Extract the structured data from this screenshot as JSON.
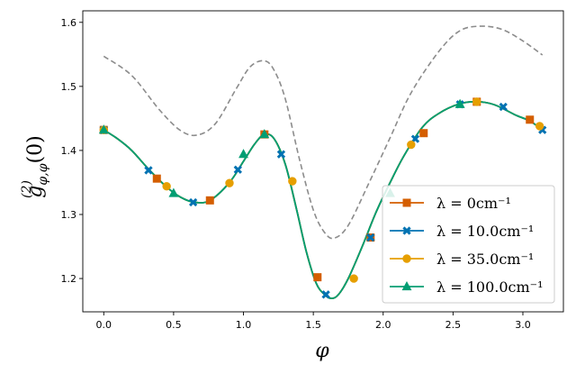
{
  "chart_data": {
    "type": "line",
    "xlabel": "φ",
    "ylabel": "g",
    "ylabel_sup": "(2)",
    "ylabel_sub": "φ,φ",
    "ylabel_arg": "(0)",
    "xlim": [
      -0.15,
      3.29
    ],
    "ylim": [
      1.148,
      1.618
    ],
    "x_ticks": [
      0.0,
      0.5,
      1.0,
      1.5,
      2.0,
      2.5,
      3.0
    ],
    "x_tick_labels": [
      "0.0",
      "0.5",
      "1.0",
      "1.5",
      "2.0",
      "2.5",
      "3.0"
    ],
    "y_ticks": [
      1.2,
      1.3,
      1.4,
      1.5,
      1.6
    ],
    "y_tick_labels": [
      "1.2",
      "1.3",
      "1.4",
      "1.5",
      "1.6"
    ],
    "grid": false,
    "legend_position": "lower-right",
    "reference_curve": {
      "style": "dashed",
      "color": "#8c8c8c",
      "x": [
        0.0,
        0.2,
        0.4,
        0.55,
        0.67,
        0.8,
        0.95,
        1.05,
        1.15,
        1.22,
        1.3,
        1.4,
        1.5,
        1.58,
        1.65,
        1.75,
        1.9,
        2.05,
        2.2,
        2.4,
        2.55,
        2.7,
        2.85,
        3.0,
        3.14
      ],
      "y": [
        1.547,
        1.517,
        1.463,
        1.431,
        1.424,
        1.442,
        1.497,
        1.531,
        1.54,
        1.525,
        1.48,
        1.387,
        1.307,
        1.272,
        1.263,
        1.283,
        1.35,
        1.42,
        1.49,
        1.555,
        1.587,
        1.594,
        1.589,
        1.571,
        1.549
      ]
    },
    "curve": {
      "x": [
        0.0,
        0.1,
        0.2,
        0.32,
        0.45,
        0.55,
        0.65,
        0.76,
        0.9,
        1.0,
        1.08,
        1.15,
        1.22,
        1.3,
        1.38,
        1.45,
        1.52,
        1.58,
        1.63,
        1.68,
        1.75,
        1.85,
        1.95,
        2.05,
        2.15,
        2.28,
        2.4,
        2.55,
        2.68,
        2.8,
        2.95,
        3.05,
        3.14
      ],
      "y": [
        1.432,
        1.418,
        1.4,
        1.371,
        1.343,
        1.327,
        1.319,
        1.322,
        1.35,
        1.383,
        1.41,
        1.425,
        1.418,
        1.378,
        1.308,
        1.242,
        1.193,
        1.175,
        1.169,
        1.175,
        1.2,
        1.25,
        1.304,
        1.35,
        1.392,
        1.436,
        1.458,
        1.473,
        1.476,
        1.471,
        1.455,
        1.446,
        1.432
      ]
    },
    "series": [
      {
        "name": "λ = 0cm⁻¹",
        "color": "#d45e00",
        "marker": "square",
        "x": [
          0.0,
          0.38,
          0.76,
          1.15,
          1.53,
          1.91,
          2.29,
          2.67,
          3.05
        ],
        "y": [
          1.432,
          1.356,
          1.322,
          1.425,
          1.202,
          1.264,
          1.427,
          1.476,
          1.448
        ]
      },
      {
        "name": "λ = 10.0cm⁻¹",
        "color": "#0072b2",
        "marker": "x",
        "x": [
          0.0,
          0.32,
          0.64,
          0.96,
          1.27,
          1.59,
          1.91,
          2.23,
          2.55,
          2.86,
          3.14
        ],
        "y": [
          1.432,
          1.369,
          1.319,
          1.37,
          1.394,
          1.175,
          1.264,
          1.418,
          1.472,
          1.468,
          1.432
        ]
      },
      {
        "name": "λ = 35.0cm⁻¹",
        "color": "#e69f00",
        "marker": "circle",
        "x": [
          0.0,
          0.45,
          0.9,
          1.35,
          1.79,
          2.2,
          2.67,
          3.12
        ],
        "y": [
          1.432,
          1.344,
          1.349,
          1.352,
          1.2,
          1.409,
          1.476,
          1.438
        ]
      },
      {
        "name": "λ = 100.0cm⁻¹",
        "color": "#009e73",
        "marker": "triangle",
        "x": [
          0.0,
          0.5,
          1.0,
          1.15,
          2.05,
          2.55
        ],
        "y": [
          1.432,
          1.333,
          1.394,
          1.425,
          1.333,
          1.472
        ]
      }
    ]
  }
}
